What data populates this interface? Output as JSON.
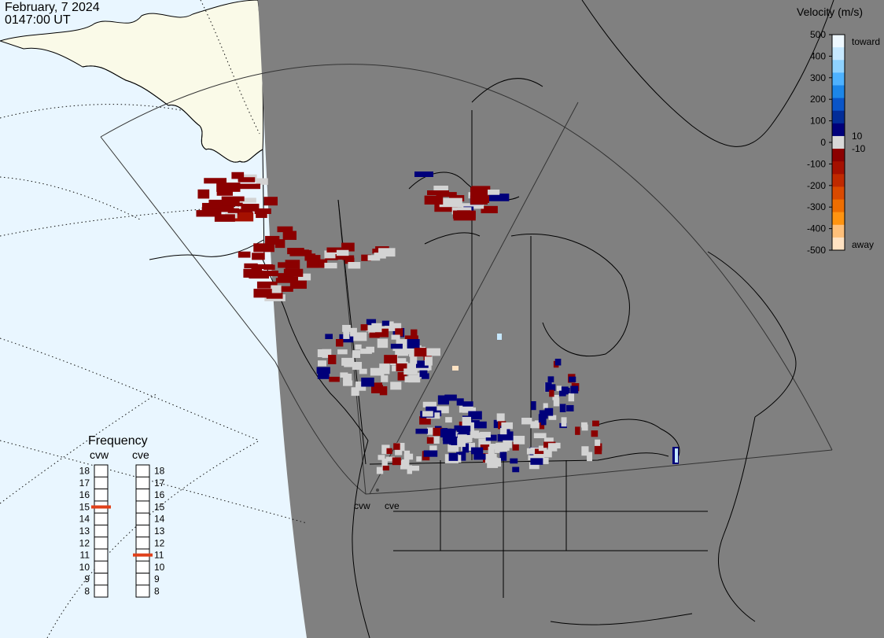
{
  "header": {
    "date": "February, 7 2024",
    "time": "0147:00 UT"
  },
  "colors": {
    "day_ocean": "#e9f6ff",
    "day_land": "#fafae8",
    "night": "#808080",
    "scatter_gray": "#d3d3d3"
  },
  "velocity_legend": {
    "title": "Velocity (m/s)",
    "ticks": [
      "500",
      "400",
      "300",
      "200",
      "100",
      "0",
      "-100",
      "-200",
      "-300",
      "-400",
      "-500"
    ],
    "small_pos": "10",
    "small_neg": "-10",
    "toward_label": "toward",
    "away_label": "away",
    "scale_colors": [
      "#eef8ff",
      "#c6e8ff",
      "#8fd2ff",
      "#4eb2ff",
      "#1c86e8",
      "#0a55c8",
      "#032d98",
      "#00007a",
      "#d8d8d8",
      "#8b0000",
      "#a51000",
      "#c02a00",
      "#da4a00",
      "#ee6e00",
      "#ff9411",
      "#ffc07a",
      "#ffe2c2"
    ]
  },
  "radars": [
    "cvw",
    "cve"
  ],
  "frequency_panel": {
    "title": "Frequency",
    "channels": [
      "18",
      "17",
      "16",
      "15",
      "14",
      "13",
      "12",
      "11",
      "10",
      "9",
      "8"
    ],
    "cvw_label": "cvw",
    "cve_label": "cve",
    "cvw_value_mhz": 15,
    "cve_value_mhz": 11,
    "marker_color": "#e0401a"
  }
}
